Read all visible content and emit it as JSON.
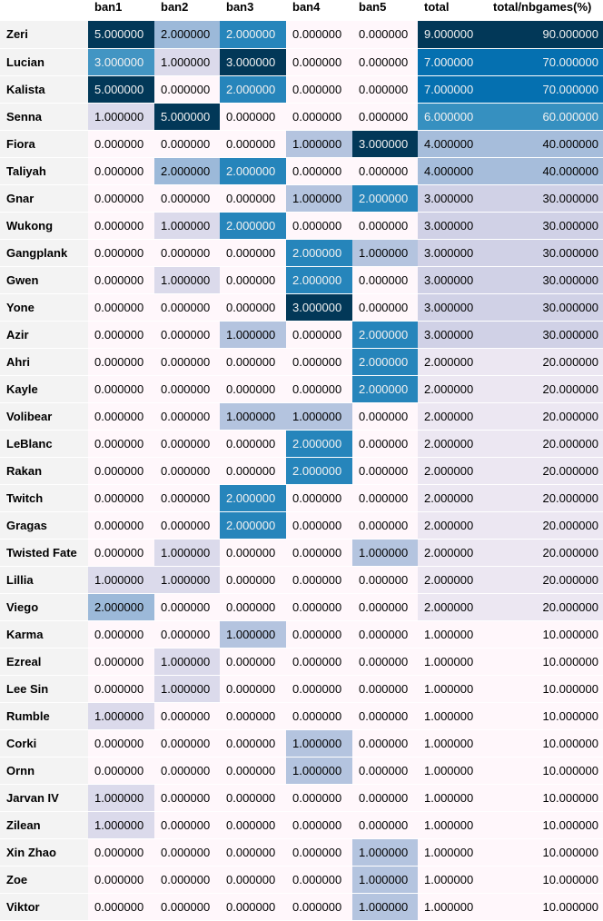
{
  "chart_data": {
    "type": "table",
    "columns": [
      "ban1",
      "ban2",
      "ban3",
      "ban4",
      "ban5",
      "total",
      "total/nbgames(%)"
    ],
    "rows": [
      {
        "name": "Zeri",
        "values": [
          "5.000000",
          "2.000000",
          "2.000000",
          "0.000000",
          "0.000000",
          "9.000000",
          "90.000000"
        ]
      },
      {
        "name": "Lucian",
        "values": [
          "3.000000",
          "1.000000",
          "3.000000",
          "0.000000",
          "0.000000",
          "7.000000",
          "70.000000"
        ]
      },
      {
        "name": "Kalista",
        "values": [
          "5.000000",
          "0.000000",
          "2.000000",
          "0.000000",
          "0.000000",
          "7.000000",
          "70.000000"
        ]
      },
      {
        "name": "Senna",
        "values": [
          "1.000000",
          "5.000000",
          "0.000000",
          "0.000000",
          "0.000000",
          "6.000000",
          "60.000000"
        ]
      },
      {
        "name": "Fiora",
        "values": [
          "0.000000",
          "0.000000",
          "0.000000",
          "1.000000",
          "3.000000",
          "4.000000",
          "40.000000"
        ]
      },
      {
        "name": "Taliyah",
        "values": [
          "0.000000",
          "2.000000",
          "2.000000",
          "0.000000",
          "0.000000",
          "4.000000",
          "40.000000"
        ]
      },
      {
        "name": "Gnar",
        "values": [
          "0.000000",
          "0.000000",
          "0.000000",
          "1.000000",
          "2.000000",
          "3.000000",
          "30.000000"
        ]
      },
      {
        "name": "Wukong",
        "values": [
          "0.000000",
          "1.000000",
          "2.000000",
          "0.000000",
          "0.000000",
          "3.000000",
          "30.000000"
        ]
      },
      {
        "name": "Gangplank",
        "values": [
          "0.000000",
          "0.000000",
          "0.000000",
          "2.000000",
          "1.000000",
          "3.000000",
          "30.000000"
        ]
      },
      {
        "name": "Gwen",
        "values": [
          "0.000000",
          "1.000000",
          "0.000000",
          "2.000000",
          "0.000000",
          "3.000000",
          "30.000000"
        ]
      },
      {
        "name": "Yone",
        "values": [
          "0.000000",
          "0.000000",
          "0.000000",
          "3.000000",
          "0.000000",
          "3.000000",
          "30.000000"
        ]
      },
      {
        "name": "Azir",
        "values": [
          "0.000000",
          "0.000000",
          "1.000000",
          "0.000000",
          "2.000000",
          "3.000000",
          "30.000000"
        ]
      },
      {
        "name": "Ahri",
        "values": [
          "0.000000",
          "0.000000",
          "0.000000",
          "0.000000",
          "2.000000",
          "2.000000",
          "20.000000"
        ]
      },
      {
        "name": "Kayle",
        "values": [
          "0.000000",
          "0.000000",
          "0.000000",
          "0.000000",
          "2.000000",
          "2.000000",
          "20.000000"
        ]
      },
      {
        "name": "Volibear",
        "values": [
          "0.000000",
          "0.000000",
          "1.000000",
          "1.000000",
          "0.000000",
          "2.000000",
          "20.000000"
        ]
      },
      {
        "name": "LeBlanc",
        "values": [
          "0.000000",
          "0.000000",
          "0.000000",
          "2.000000",
          "0.000000",
          "2.000000",
          "20.000000"
        ]
      },
      {
        "name": "Rakan",
        "values": [
          "0.000000",
          "0.000000",
          "0.000000",
          "2.000000",
          "0.000000",
          "2.000000",
          "20.000000"
        ]
      },
      {
        "name": "Twitch",
        "values": [
          "0.000000",
          "0.000000",
          "2.000000",
          "0.000000",
          "0.000000",
          "2.000000",
          "20.000000"
        ]
      },
      {
        "name": "Gragas",
        "values": [
          "0.000000",
          "0.000000",
          "2.000000",
          "0.000000",
          "0.000000",
          "2.000000",
          "20.000000"
        ]
      },
      {
        "name": "Twisted Fate",
        "values": [
          "0.000000",
          "1.000000",
          "0.000000",
          "0.000000",
          "1.000000",
          "2.000000",
          "20.000000"
        ]
      },
      {
        "name": "Lillia",
        "values": [
          "1.000000",
          "1.000000",
          "0.000000",
          "0.000000",
          "0.000000",
          "2.000000",
          "20.000000"
        ]
      },
      {
        "name": "Viego",
        "values": [
          "2.000000",
          "0.000000",
          "0.000000",
          "0.000000",
          "0.000000",
          "2.000000",
          "20.000000"
        ]
      },
      {
        "name": "Karma",
        "values": [
          "0.000000",
          "0.000000",
          "1.000000",
          "0.000000",
          "0.000000",
          "1.000000",
          "10.000000"
        ]
      },
      {
        "name": "Ezreal",
        "values": [
          "0.000000",
          "1.000000",
          "0.000000",
          "0.000000",
          "0.000000",
          "1.000000",
          "10.000000"
        ]
      },
      {
        "name": "Lee Sin",
        "values": [
          "0.000000",
          "1.000000",
          "0.000000",
          "0.000000",
          "0.000000",
          "1.000000",
          "10.000000"
        ]
      },
      {
        "name": "Rumble",
        "values": [
          "1.000000",
          "0.000000",
          "0.000000",
          "0.000000",
          "0.000000",
          "1.000000",
          "10.000000"
        ]
      },
      {
        "name": "Corki",
        "values": [
          "0.000000",
          "0.000000",
          "0.000000",
          "1.000000",
          "0.000000",
          "1.000000",
          "10.000000"
        ]
      },
      {
        "name": "Ornn",
        "values": [
          "0.000000",
          "0.000000",
          "0.000000",
          "1.000000",
          "0.000000",
          "1.000000",
          "10.000000"
        ]
      },
      {
        "name": "Jarvan IV",
        "values": [
          "1.000000",
          "0.000000",
          "0.000000",
          "0.000000",
          "0.000000",
          "1.000000",
          "10.000000"
        ]
      },
      {
        "name": "Zilean",
        "values": [
          "1.000000",
          "0.000000",
          "0.000000",
          "0.000000",
          "0.000000",
          "1.000000",
          "10.000000"
        ]
      },
      {
        "name": "Xin Zhao",
        "values": [
          "0.000000",
          "0.000000",
          "0.000000",
          "0.000000",
          "1.000000",
          "1.000000",
          "10.000000"
        ]
      },
      {
        "name": "Zoe",
        "values": [
          "0.000000",
          "0.000000",
          "0.000000",
          "0.000000",
          "1.000000",
          "1.000000",
          "10.000000"
        ]
      },
      {
        "name": "Viktor",
        "values": [
          "0.000000",
          "0.000000",
          "0.000000",
          "0.000000",
          "1.000000",
          "1.000000",
          "10.000000"
        ]
      }
    ],
    "colormap": {
      "name": "PuBu",
      "scaling": "per-column",
      "stops": [
        "#fff7fb",
        "#ece7f2",
        "#d0d1e6",
        "#a6bddb",
        "#74a9cf",
        "#3690c0",
        "#0570b0",
        "#045a8d",
        "#023858"
      ]
    }
  }
}
